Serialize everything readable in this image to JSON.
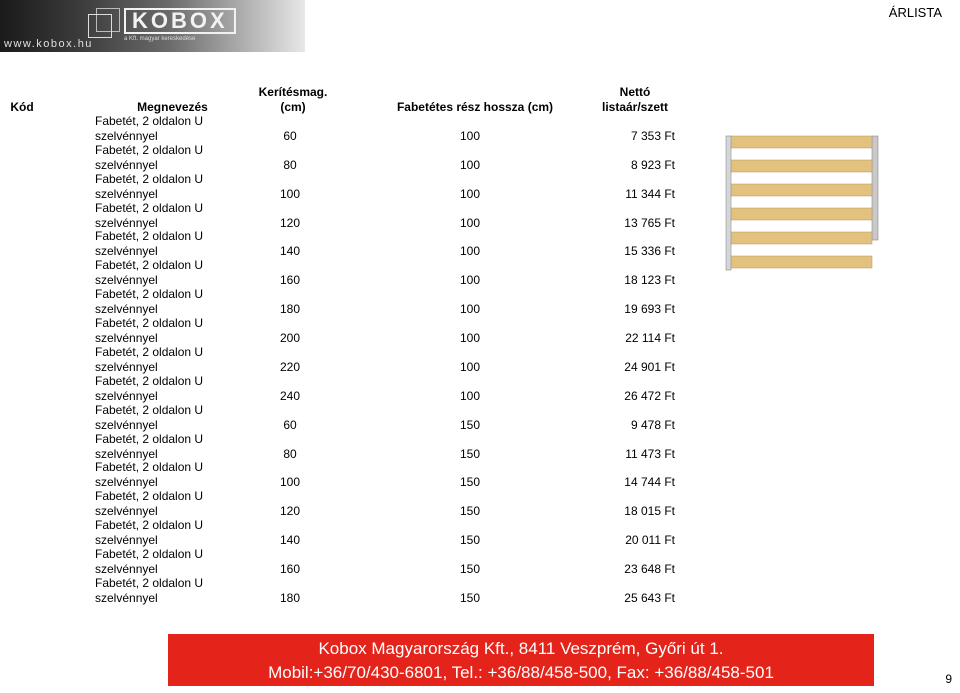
{
  "header": {
    "logo_brand": "KOBOX",
    "logo_sub": "a Kft. magyar kereskedése",
    "logo_url": "www.kobox.hu",
    "doc_title": "ÁRLISTA"
  },
  "table": {
    "headers": {
      "code": "Kód",
      "name": "Megnevezés",
      "height_line1": "Kerítésmag.",
      "height_line2": "(cm)",
      "length": "Fabetétes rész hossza (cm)",
      "price_line1": "Nettó",
      "price_line2": "listaár/szett"
    },
    "rows": [
      {
        "name1": "Fabetét, 2 oldalon U",
        "name2": "szelvénnyel",
        "height": "60",
        "length": "100",
        "price": "7 353 Ft"
      },
      {
        "name1": "Fabetét, 2 oldalon U",
        "name2": "szelvénnyel",
        "height": "80",
        "length": "100",
        "price": "8 923 Ft"
      },
      {
        "name1": "Fabetét, 2 oldalon U",
        "name2": "szelvénnyel",
        "height": "100",
        "length": "100",
        "price": "11 344 Ft"
      },
      {
        "name1": "Fabetét, 2 oldalon U",
        "name2": "szelvénnyel",
        "height": "120",
        "length": "100",
        "price": "13 765 Ft"
      },
      {
        "name1": "Fabetét, 2 oldalon U",
        "name2": "szelvénnyel",
        "height": "140",
        "length": "100",
        "price": "15 336 Ft"
      },
      {
        "name1": "Fabetét, 2 oldalon U",
        "name2": "szelvénnyel",
        "height": "160",
        "length": "100",
        "price": "18 123 Ft"
      },
      {
        "name1": "Fabetét, 2 oldalon U",
        "name2": "szelvénnyel",
        "height": "180",
        "length": "100",
        "price": "19 693 Ft"
      },
      {
        "name1": "Fabetét, 2 oldalon U",
        "name2": "szelvénnyel",
        "height": "200",
        "length": "100",
        "price": "22 114 Ft"
      },
      {
        "name1": "Fabetét, 2 oldalon U",
        "name2": "szelvénnyel",
        "height": "220",
        "length": "100",
        "price": "24 901 Ft"
      },
      {
        "name1": "Fabetét, 2 oldalon U",
        "name2": "szelvénnyel",
        "height": "240",
        "length": "100",
        "price": "26 472 Ft"
      },
      {
        "name1": "Fabetét, 2 oldalon U",
        "name2": "szelvénnyel",
        "height": "60",
        "length": "150",
        "price": "9 478 Ft"
      },
      {
        "name1": "Fabetét, 2 oldalon U",
        "name2": "szelvénnyel",
        "height": "80",
        "length": "150",
        "price": "11 473 Ft"
      },
      {
        "name1": "Fabetét, 2 oldalon U",
        "name2": "szelvénnyel",
        "height": "100",
        "length": "150",
        "price": "14 744 Ft"
      },
      {
        "name1": "Fabetét, 2 oldalon U",
        "name2": "szelvénnyel",
        "height": "120",
        "length": "150",
        "price": "18 015 Ft"
      },
      {
        "name1": "Fabetét, 2 oldalon U",
        "name2": "szelvénnyel",
        "height": "140",
        "length": "150",
        "price": "20 011 Ft"
      },
      {
        "name1": "Fabetét, 2 oldalon U",
        "name2": "szelvénnyel",
        "height": "160",
        "length": "150",
        "price": "23 648 Ft"
      },
      {
        "name1": "Fabetét, 2 oldalon U",
        "name2": "szelvénnyel",
        "height": "180",
        "length": "150",
        "price": "25 643 Ft"
      }
    ]
  },
  "footer": {
    "line1": "Kobox Magyarország Kft., 8411 Veszprém, Győri út 1.",
    "line2": "Mobil:+36/70/430-6801, Tel.: +36/88/458-500, Fax: +36/88/458-501",
    "color": "#e4231a"
  },
  "page_number": "9"
}
